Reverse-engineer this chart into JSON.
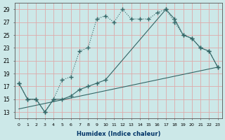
{
  "xlabel": "Humidex (Indice chaleur)",
  "bg_color": "#cce8e8",
  "grid_color": "#ddaaaa",
  "line_color": "#336666",
  "xlim": [
    -0.5,
    23.5
  ],
  "ylim": [
    12,
    30
  ],
  "yticks": [
    13,
    15,
    17,
    19,
    21,
    23,
    25,
    27,
    29
  ],
  "xticks": [
    0,
    1,
    2,
    3,
    4,
    5,
    6,
    7,
    8,
    9,
    10,
    11,
    12,
    13,
    14,
    15,
    16,
    17,
    18,
    19,
    20,
    21,
    22,
    23
  ],
  "series1_x": [
    0,
    1,
    2,
    3,
    4,
    5,
    6,
    7,
    8,
    9,
    10,
    11,
    12,
    13,
    14,
    15,
    16,
    17,
    18,
    19,
    20,
    21,
    22,
    23
  ],
  "series1_y": [
    17.5,
    15.0,
    15.0,
    13.0,
    15.0,
    18.0,
    18.5,
    22.5,
    23.0,
    27.5,
    28.0,
    27.0,
    29.0,
    27.5,
    27.5,
    27.5,
    28.5,
    29.0,
    27.0,
    25.0,
    24.5,
    23.0,
    22.5,
    20.0
  ],
  "series2_x": [
    0,
    1,
    2,
    3,
    4,
    5,
    6,
    7,
    8,
    9,
    10,
    17,
    18,
    19,
    20,
    21,
    22,
    23
  ],
  "series2_y": [
    17.5,
    15.0,
    15.0,
    13.0,
    15.0,
    15.0,
    15.5,
    16.5,
    17.0,
    17.5,
    18.0,
    29.0,
    27.5,
    25.0,
    24.5,
    23.0,
    22.5,
    20.0
  ],
  "series3_x": [
    0,
    23
  ],
  "series3_y": [
    13.5,
    20.0
  ]
}
